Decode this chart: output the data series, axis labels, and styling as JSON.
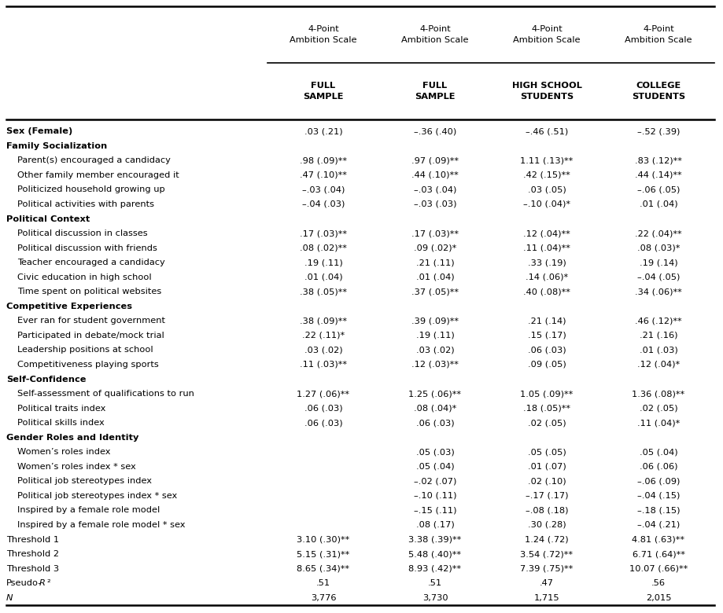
{
  "col_headers_line1": [
    "4-Point\nAmbition Scale",
    "4-Point\nAmbition Scale",
    "4-Point\nAmbition Scale",
    "4-Point\nAmbition Scale"
  ],
  "col_headers_line2": [
    "FULL\nSAMPLE",
    "FULL\nSAMPLE",
    "HIGH SCHOOL\nSTUDENTS",
    "COLLEGE\nSTUDENTS"
  ],
  "rows": [
    {
      "label": "Sex (Female)",
      "bold": true,
      "indent": 0,
      "values": [
        ".03 (.21)",
        "–.36 (.40)",
        "–.46 (.51)",
        "–.52 (.39)"
      ]
    },
    {
      "label": "Family Socialization",
      "bold": true,
      "indent": 0,
      "values": [
        "",
        "",
        "",
        ""
      ]
    },
    {
      "label": "Parent(s) encouraged a candidacy",
      "bold": false,
      "indent": 1,
      "values": [
        ".98 (.09)**",
        ".97 (.09)**",
        "1.11 (.13)**",
        ".83 (.12)**"
      ]
    },
    {
      "label": "Other family member encouraged it",
      "bold": false,
      "indent": 1,
      "values": [
        ".47 (.10)**",
        ".44 (.10)**",
        ".42 (.15)**",
        ".44 (.14)**"
      ]
    },
    {
      "label": "Politicized household growing up",
      "bold": false,
      "indent": 1,
      "values": [
        "–.03 (.04)",
        "–.03 (.04)",
        ".03 (.05)",
        "–.06 (.05)"
      ]
    },
    {
      "label": "Political activities with parents",
      "bold": false,
      "indent": 1,
      "values": [
        "–.04 (.03)",
        "–.03 (.03)",
        "–.10 (.04)*",
        ".01 (.04)"
      ]
    },
    {
      "label": "Political Context",
      "bold": true,
      "indent": 0,
      "values": [
        "",
        "",
        "",
        ""
      ]
    },
    {
      "label": "Political discussion in classes",
      "bold": false,
      "indent": 1,
      "values": [
        ".17 (.03)**",
        ".17 (.03)**",
        ".12 (.04)**",
        ".22 (.04)**"
      ]
    },
    {
      "label": "Political discussion with friends",
      "bold": false,
      "indent": 1,
      "values": [
        ".08 (.02)**",
        ".09 (.02)*",
        ".11 (.04)**",
        ".08 (.03)*"
      ]
    },
    {
      "label": "Teacher encouraged a candidacy",
      "bold": false,
      "indent": 1,
      "values": [
        ".19 (.11)",
        ".21 (.11)",
        ".33 (.19)",
        ".19 (.14)"
      ]
    },
    {
      "label": "Civic education in high school",
      "bold": false,
      "indent": 1,
      "values": [
        ".01 (.04)",
        ".01 (.04)",
        ".14 (.06)*",
        "–.04 (.05)"
      ]
    },
    {
      "label": "Time spent on political websites",
      "bold": false,
      "indent": 1,
      "values": [
        ".38 (.05)**",
        ".37 (.05)**",
        ".40 (.08)**",
        ".34 (.06)**"
      ]
    },
    {
      "label": "Competitive Experiences",
      "bold": true,
      "indent": 0,
      "values": [
        "",
        "",
        "",
        ""
      ]
    },
    {
      "label": "Ever ran for student government",
      "bold": false,
      "indent": 1,
      "values": [
        ".38 (.09)**",
        ".39 (.09)**",
        ".21 (.14)",
        ".46 (.12)**"
      ]
    },
    {
      "label": "Participated in debate/mock trial",
      "bold": false,
      "indent": 1,
      "values": [
        ".22 (.11)*",
        ".19 (.11)",
        ".15 (.17)",
        ".21 (.16)"
      ]
    },
    {
      "label": "Leadership positions at school",
      "bold": false,
      "indent": 1,
      "values": [
        ".03 (.02)",
        ".03 (.02)",
        ".06 (.03)",
        ".01 (.03)"
      ]
    },
    {
      "label": "Competitiveness playing sports",
      "bold": false,
      "indent": 1,
      "values": [
        ".11 (.03)**",
        ".12 (.03)**",
        ".09 (.05)",
        ".12 (.04)*"
      ]
    },
    {
      "label": "Self-Confidence",
      "bold": true,
      "indent": 0,
      "values": [
        "",
        "",
        "",
        ""
      ]
    },
    {
      "label": "Self-assessment of qualifications to run",
      "bold": false,
      "indent": 1,
      "values": [
        "1.27 (.06)**",
        "1.25 (.06)**",
        "1.05 (.09)**",
        "1.36 (.08)**"
      ]
    },
    {
      "label": "Political traits index",
      "bold": false,
      "indent": 1,
      "values": [
        ".06 (.03)",
        ".08 (.04)*",
        ".18 (.05)**",
        ".02 (.05)"
      ]
    },
    {
      "label": "Political skills index",
      "bold": false,
      "indent": 1,
      "values": [
        ".06 (.03)",
        ".06 (.03)",
        ".02 (.05)",
        ".11 (.04)*"
      ]
    },
    {
      "label": "Gender Roles and Identity",
      "bold": true,
      "indent": 0,
      "values": [
        "",
        "",
        "",
        ""
      ]
    },
    {
      "label": "Women’s roles index",
      "bold": false,
      "indent": 1,
      "values": [
        "",
        ".05 (.03)",
        ".05 (.05)",
        ".05 (.04)"
      ]
    },
    {
      "label": "Women’s roles index * sex",
      "bold": false,
      "indent": 1,
      "values": [
        "",
        ".05 (.04)",
        ".01 (.07)",
        ".06 (.06)"
      ]
    },
    {
      "label": "Political job stereotypes index",
      "bold": false,
      "indent": 1,
      "values": [
        "",
        "–.02 (.07)",
        ".02 (.10)",
        "–.06 (.09)"
      ]
    },
    {
      "label": "Political job stereotypes index * sex",
      "bold": false,
      "indent": 1,
      "values": [
        "",
        "–.10 (.11)",
        "–.17 (.17)",
        "–.04 (.15)"
      ]
    },
    {
      "label": "Inspired by a female role model",
      "bold": false,
      "indent": 1,
      "values": [
        "",
        "–.15 (.11)",
        "–.08 (.18)",
        "–.18 (.15)"
      ]
    },
    {
      "label": "Inspired by a female role model * sex",
      "bold": false,
      "indent": 1,
      "values": [
        "",
        ".08 (.17)",
        ".30 (.28)",
        "–.04 (.21)"
      ]
    },
    {
      "label": "Threshold 1",
      "bold": false,
      "indent": 0,
      "values": [
        "3.10 (.30)**",
        "3.38 (.39)**",
        "1.24 (.72)",
        "4.81 (.63)**"
      ]
    },
    {
      "label": "Threshold 2",
      "bold": false,
      "indent": 0,
      "values": [
        "5.15 (.31)**",
        "5.48 (.40)**",
        "3.54 (.72)**",
        "6.71 (.64)**"
      ]
    },
    {
      "label": "Threshold 3",
      "bold": false,
      "indent": 0,
      "values": [
        "8.65 (.34)**",
        "8.93 (.42)**",
        "7.39 (.75)**",
        "10.07 (.66)**"
      ]
    },
    {
      "label": "Pseudo-R²",
      "bold": false,
      "indent": 0,
      "italic_label": true,
      "values": [
        ".51",
        ".51",
        ".47",
        ".56"
      ]
    },
    {
      "label": "N",
      "bold": false,
      "indent": 0,
      "italic_label": true,
      "values": [
        "3,776",
        "3,730",
        "1,715",
        "2,015"
      ]
    }
  ],
  "bg_color": "#ffffff",
  "text_color": "#000000",
  "font_size": 8.2,
  "header_font_size": 8.2,
  "indent_size": 0.022
}
